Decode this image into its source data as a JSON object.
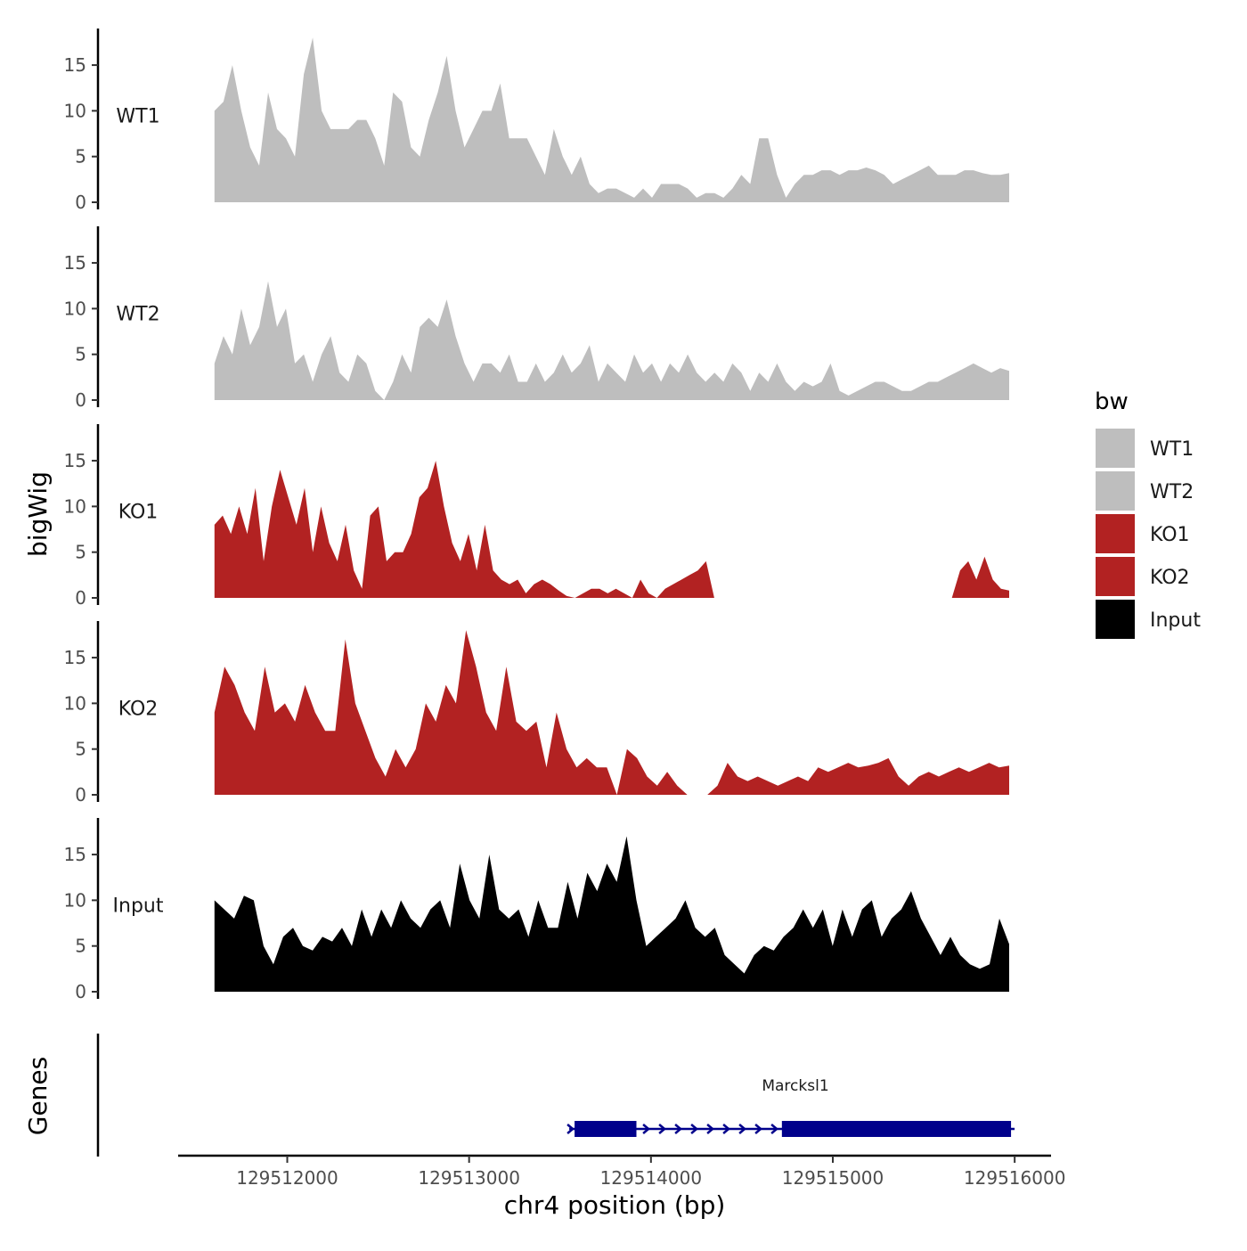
{
  "chart_data": {
    "type": "area",
    "title": "",
    "ylabel": "bigWig",
    "xlabel": "chr4 position (bp)",
    "xlim": [
      129511400,
      129516200
    ],
    "ylim": [
      0,
      19
    ],
    "y_ticks": [
      0,
      5,
      10,
      15
    ],
    "x_ticks": [
      {
        "value": 129512000,
        "label": "129512000"
      },
      {
        "value": 129513000,
        "label": "129513000"
      },
      {
        "value": 129514000,
        "label": "129514000"
      },
      {
        "value": 129515000,
        "label": "129515000"
      },
      {
        "value": 129516000,
        "label": "129516000"
      }
    ],
    "legend": {
      "title": "bw",
      "position": "right",
      "entries": [
        {
          "label": "WT1",
          "color": "#bebebe"
        },
        {
          "label": "WT2",
          "color": "#bebebe"
        },
        {
          "label": "KO1",
          "color": "#b22222"
        },
        {
          "label": "KO2",
          "color": "#b22222"
        },
        {
          "label": "Input",
          "color": "#000000"
        }
      ]
    },
    "x_start": 129511600,
    "x_step": 100,
    "series": [
      {
        "name": "WT1",
        "color": "#bebebe",
        "values": [
          10,
          11,
          15,
          10,
          6,
          4,
          12,
          8,
          7,
          5,
          14,
          18,
          10,
          8,
          8,
          8,
          9,
          9,
          7,
          4,
          12,
          11,
          6,
          5,
          9,
          12,
          16,
          10,
          6,
          8,
          10,
          10,
          13,
          7,
          7,
          7,
          5,
          3,
          8,
          5,
          3,
          5,
          2,
          1,
          1.5,
          1.5,
          1,
          0.5,
          1.5,
          0.5,
          2,
          2,
          2,
          1.5,
          0.5,
          1,
          1,
          0.5,
          1.5,
          3,
          2,
          7,
          7,
          3,
          0.5,
          2,
          3,
          3,
          3.5,
          3.5,
          3,
          3.5,
          3.5,
          3.8,
          3.5,
          3,
          2,
          2.5,
          3,
          3.5,
          4,
          3,
          3,
          3,
          3.5,
          3.5,
          3.2,
          3,
          3,
          3.2
        ]
      },
      {
        "name": "WT2",
        "color": "#bebebe",
        "values": [
          4,
          7,
          5,
          10,
          6,
          8,
          13,
          8,
          10,
          4,
          5,
          2,
          5,
          7,
          3,
          2,
          5,
          4,
          1,
          0,
          2,
          5,
          3,
          8,
          9,
          8,
          11,
          7,
          4,
          2,
          4,
          4,
          3,
          5,
          2,
          2,
          4,
          2,
          3,
          5,
          3,
          4,
          6,
          2,
          4,
          3,
          2,
          5,
          3,
          4,
          2,
          4,
          3,
          5,
          3,
          2,
          3,
          2,
          4,
          3,
          1,
          3,
          2,
          4,
          2,
          1,
          2,
          1.5,
          2,
          4,
          1,
          0.5,
          1,
          1.5,
          2,
          2,
          1.5,
          1,
          1,
          1.5,
          2,
          2,
          2.5,
          3,
          3.5,
          4,
          3.5,
          3,
          3.5,
          3.2
        ]
      },
      {
        "name": "KO1",
        "color": "#b22222",
        "values": [
          8,
          9,
          7,
          10,
          7,
          12,
          4,
          10,
          14,
          11,
          8,
          12,
          5,
          10,
          6,
          4,
          8,
          3,
          1,
          9,
          10,
          4,
          5,
          5,
          7,
          11,
          12,
          15,
          10,
          6,
          4,
          7,
          3,
          8,
          3,
          2,
          1.5,
          2,
          0.5,
          1.5,
          2,
          1.5,
          0.8,
          0.2,
          0,
          0.5,
          1,
          1,
          0.5,
          1,
          0.5,
          0,
          2,
          0.5,
          0,
          1,
          1.5,
          2,
          2.5,
          3,
          4,
          0,
          0,
          0,
          0,
          0,
          0,
          0,
          0,
          0,
          0,
          0,
          0,
          0,
          0,
          0,
          0,
          0,
          0,
          0,
          0,
          0,
          0,
          0,
          0,
          0,
          0,
          0,
          0,
          0
        ],
        "tail": [
          0,
          3,
          4,
          2,
          4.5,
          2,
          1,
          0.8
        ]
      },
      {
        "name": "KO2",
        "color": "#b22222",
        "values": [
          9,
          14,
          12,
          9,
          7,
          14,
          9,
          10,
          8,
          12,
          9,
          7,
          7,
          17,
          10,
          7,
          4,
          2,
          5,
          3,
          5,
          10,
          8,
          12,
          10,
          18,
          14,
          9,
          7,
          14,
          8,
          7,
          8,
          3,
          9,
          5,
          3,
          4,
          3,
          3,
          0,
          5,
          4,
          2,
          1,
          2.5,
          1,
          0,
          0,
          0,
          1,
          3.5,
          2,
          1.5,
          2,
          1.5,
          1,
          1.5,
          2,
          1.5,
          3,
          2.5,
          3,
          3.5,
          3,
          3.2,
          3.5,
          4,
          2,
          1,
          2,
          2.5,
          2,
          2.5,
          3,
          2.5,
          3,
          3.5,
          3,
          3.2
        ]
      },
      {
        "name": "Input",
        "color": "#000000",
        "values": [
          10,
          9,
          8,
          10.5,
          10,
          5,
          3,
          6,
          7,
          5,
          4.5,
          6,
          5.5,
          7,
          5,
          9,
          6,
          9,
          7,
          10,
          8,
          7,
          9,
          10,
          7,
          14,
          10,
          8,
          15,
          9,
          8,
          9,
          6,
          10,
          7,
          7,
          12,
          8,
          13,
          11,
          14,
          12,
          17,
          10,
          5,
          6,
          7,
          8,
          10,
          7,
          6,
          7,
          4,
          3,
          2,
          4,
          5,
          4.5,
          6,
          7,
          9,
          7,
          9,
          5,
          9,
          6,
          9,
          10,
          6,
          8,
          9,
          11,
          8,
          6,
          4,
          6,
          4,
          3,
          2.5,
          3,
          8,
          5.2
        ]
      }
    ],
    "genes_track": {
      "label": "Genes",
      "genes": [
        {
          "name": "Marcksl1",
          "strand": "+",
          "start": 129513580,
          "end": 129515980,
          "exons": [
            [
              129513580,
              129513920
            ],
            [
              129514720,
              129515980
            ]
          ]
        }
      ]
    }
  }
}
